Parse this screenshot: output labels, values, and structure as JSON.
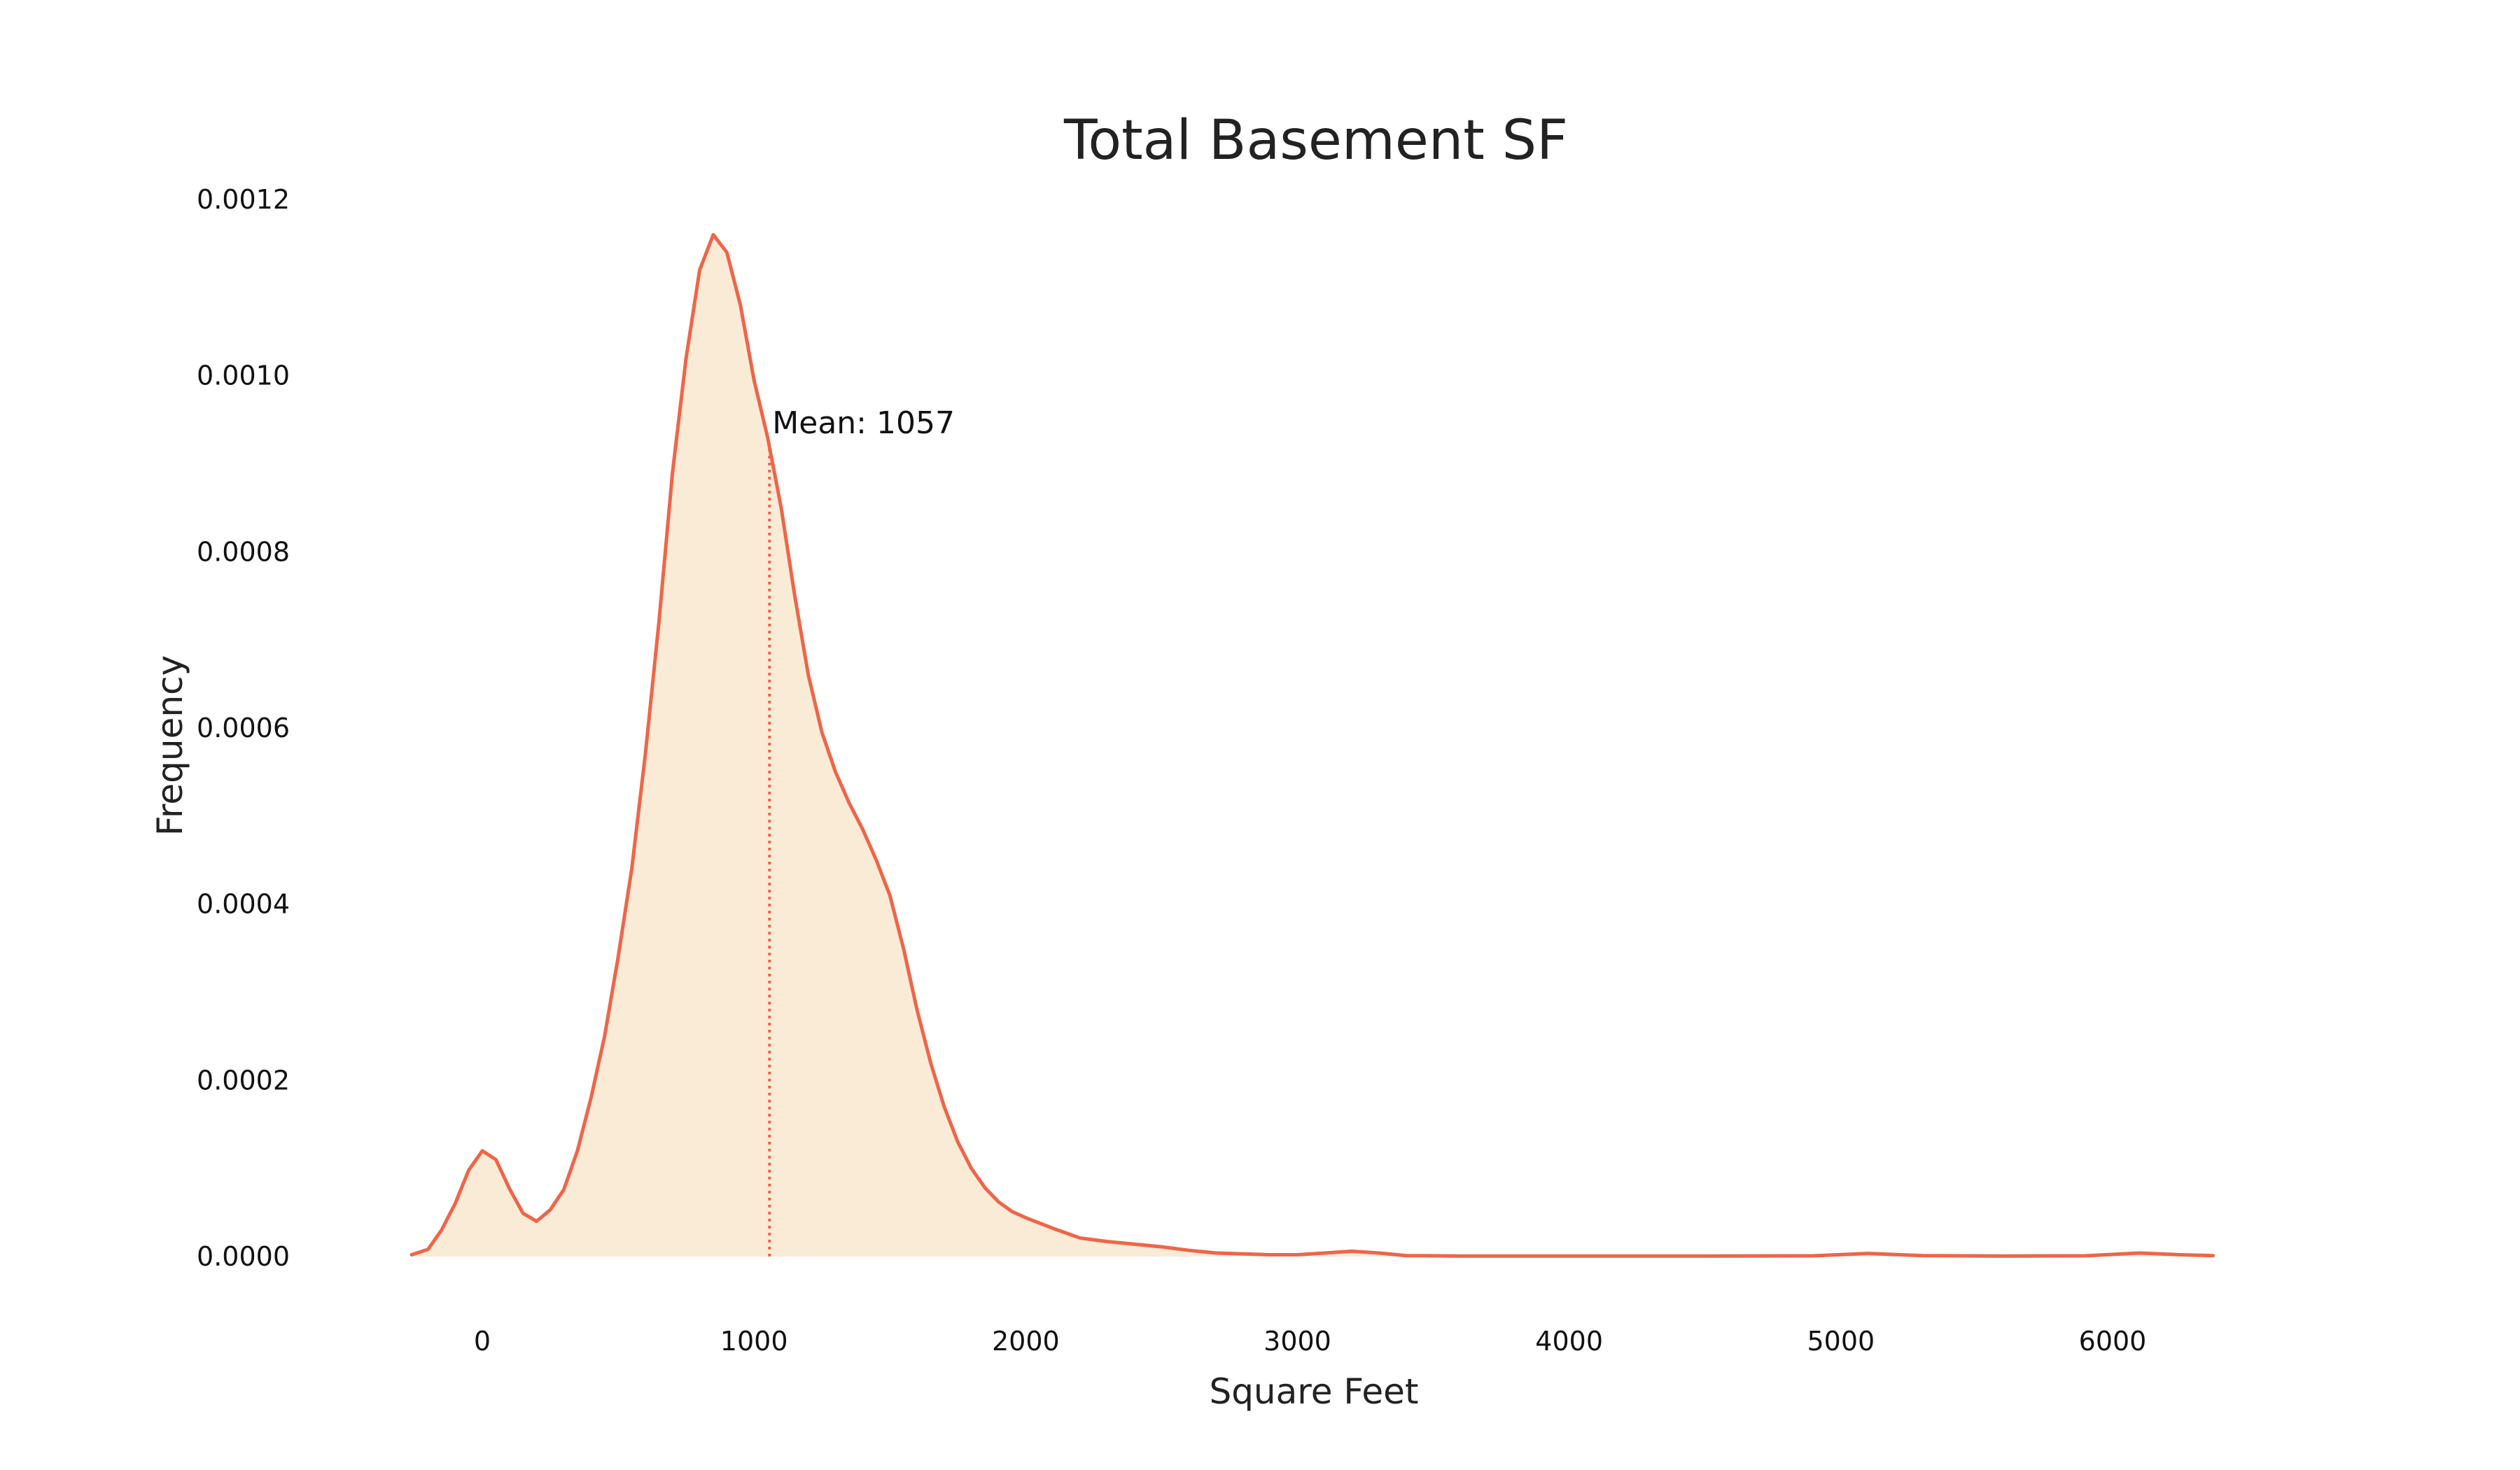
{
  "colors": {
    "background": "#ffffff",
    "line": "#ef6548",
    "fill": "#faebd7",
    "mean_line": "#ef6548",
    "text": "#222222"
  },
  "chart_data": {
    "type": "area",
    "title": "Total Basement SF",
    "xlabel": "Square Feet",
    "ylabel": "Frequency",
    "xlim": [
      -300,
      6400
    ],
    "ylim": [
      0,
      0.0012
    ],
    "grid": false,
    "legend": "none",
    "x_ticks": [
      0,
      1000,
      2000,
      3000,
      4000,
      5000,
      6000
    ],
    "x_tick_labels": [
      "0",
      "1000",
      "2000",
      "3000",
      "4000",
      "5000",
      "6000"
    ],
    "y_ticks": [
      0.0,
      0.0002,
      0.0004,
      0.0006,
      0.0008,
      0.001,
      0.0012
    ],
    "y_tick_labels": [
      "0.0000",
      "0.0002",
      "0.0004",
      "0.0006",
      "0.0008",
      "0.0010",
      "0.0012"
    ],
    "series": [
      {
        "x": [
          -260,
          -200,
          -150,
          -100,
          -50,
          0,
          50,
          100,
          150,
          200,
          250,
          300,
          350,
          400,
          450,
          500,
          550,
          600,
          650,
          700,
          750,
          800,
          850,
          900,
          950,
          1000,
          1050,
          1100,
          1150,
          1200,
          1250,
          1300,
          1350,
          1400,
          1450,
          1500,
          1550,
          1600,
          1650,
          1700,
          1750,
          1800,
          1850,
          1900,
          1950,
          2000,
          2100,
          2200,
          2300,
          2400,
          2500,
          2600,
          2700,
          2800,
          2900,
          3000,
          3100,
          3200,
          3300,
          3400,
          3600,
          4000,
          4500,
          4900,
          5100,
          5300,
          5600,
          5900,
          6100,
          6250,
          6370
        ],
        "y": [
          2e-06,
          8e-06,
          3e-05,
          6e-05,
          9.8e-05,
          0.00012,
          0.00011,
          7.7e-05,
          4.9e-05,
          4e-05,
          5.3e-05,
          7.6e-05,
          0.00012,
          0.00018,
          0.00025,
          0.00034,
          0.00044,
          0.00057,
          0.00072,
          0.00089,
          0.00102,
          0.00112,
          0.00116,
          0.00114,
          0.00108,
          0.000995,
          0.00093,
          0.00085,
          0.00075,
          0.00066,
          0.000595,
          0.00055,
          0.000515,
          0.000485,
          0.00045,
          0.00041,
          0.00035,
          0.00028,
          0.00022,
          0.00017,
          0.00013,
          0.0001,
          7.8e-05,
          6.2e-05,
          5.1e-05,
          4.4e-05,
          3.2e-05,
          2.1e-05,
          1.7e-05,
          1.4e-05,
          1.1e-05,
          7e-06,
          4e-06,
          3e-06,
          2e-06,
          2e-06,
          4e-06,
          6e-06,
          4e-06,
          1e-06,
          5e-07,
          5e-07,
          5e-07,
          8e-07,
          3.5e-06,
          1e-06,
          5e-07,
          8e-07,
          4e-06,
          2e-06,
          1e-06
        ]
      }
    ],
    "annotations": [
      {
        "label": "Mean: 1057",
        "x": 1057
      }
    ]
  }
}
